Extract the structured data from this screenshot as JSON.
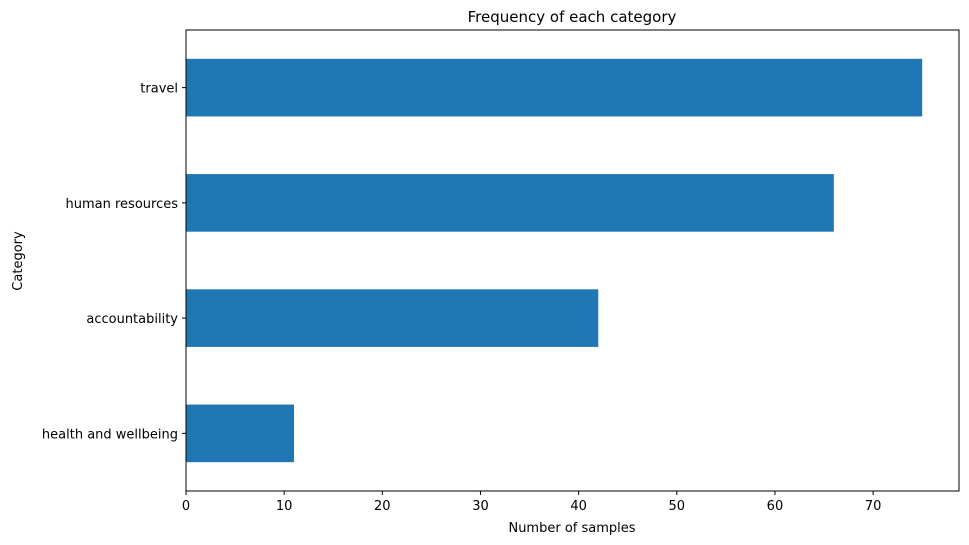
{
  "chart_data": {
    "type": "bar",
    "orientation": "horizontal",
    "title": "Frequency of each category",
    "xlabel": "Number of samples",
    "ylabel": "Category",
    "categories": [
      "health and wellbeing",
      "accountability",
      "human resources",
      "travel"
    ],
    "values": [
      11,
      42,
      66,
      75
    ],
    "xlim": [
      0,
      78.75
    ],
    "xticks": [
      0,
      10,
      20,
      30,
      40,
      50,
      60,
      70
    ],
    "bar_color": "#1f77b4",
    "grid": false,
    "legend": "none"
  }
}
